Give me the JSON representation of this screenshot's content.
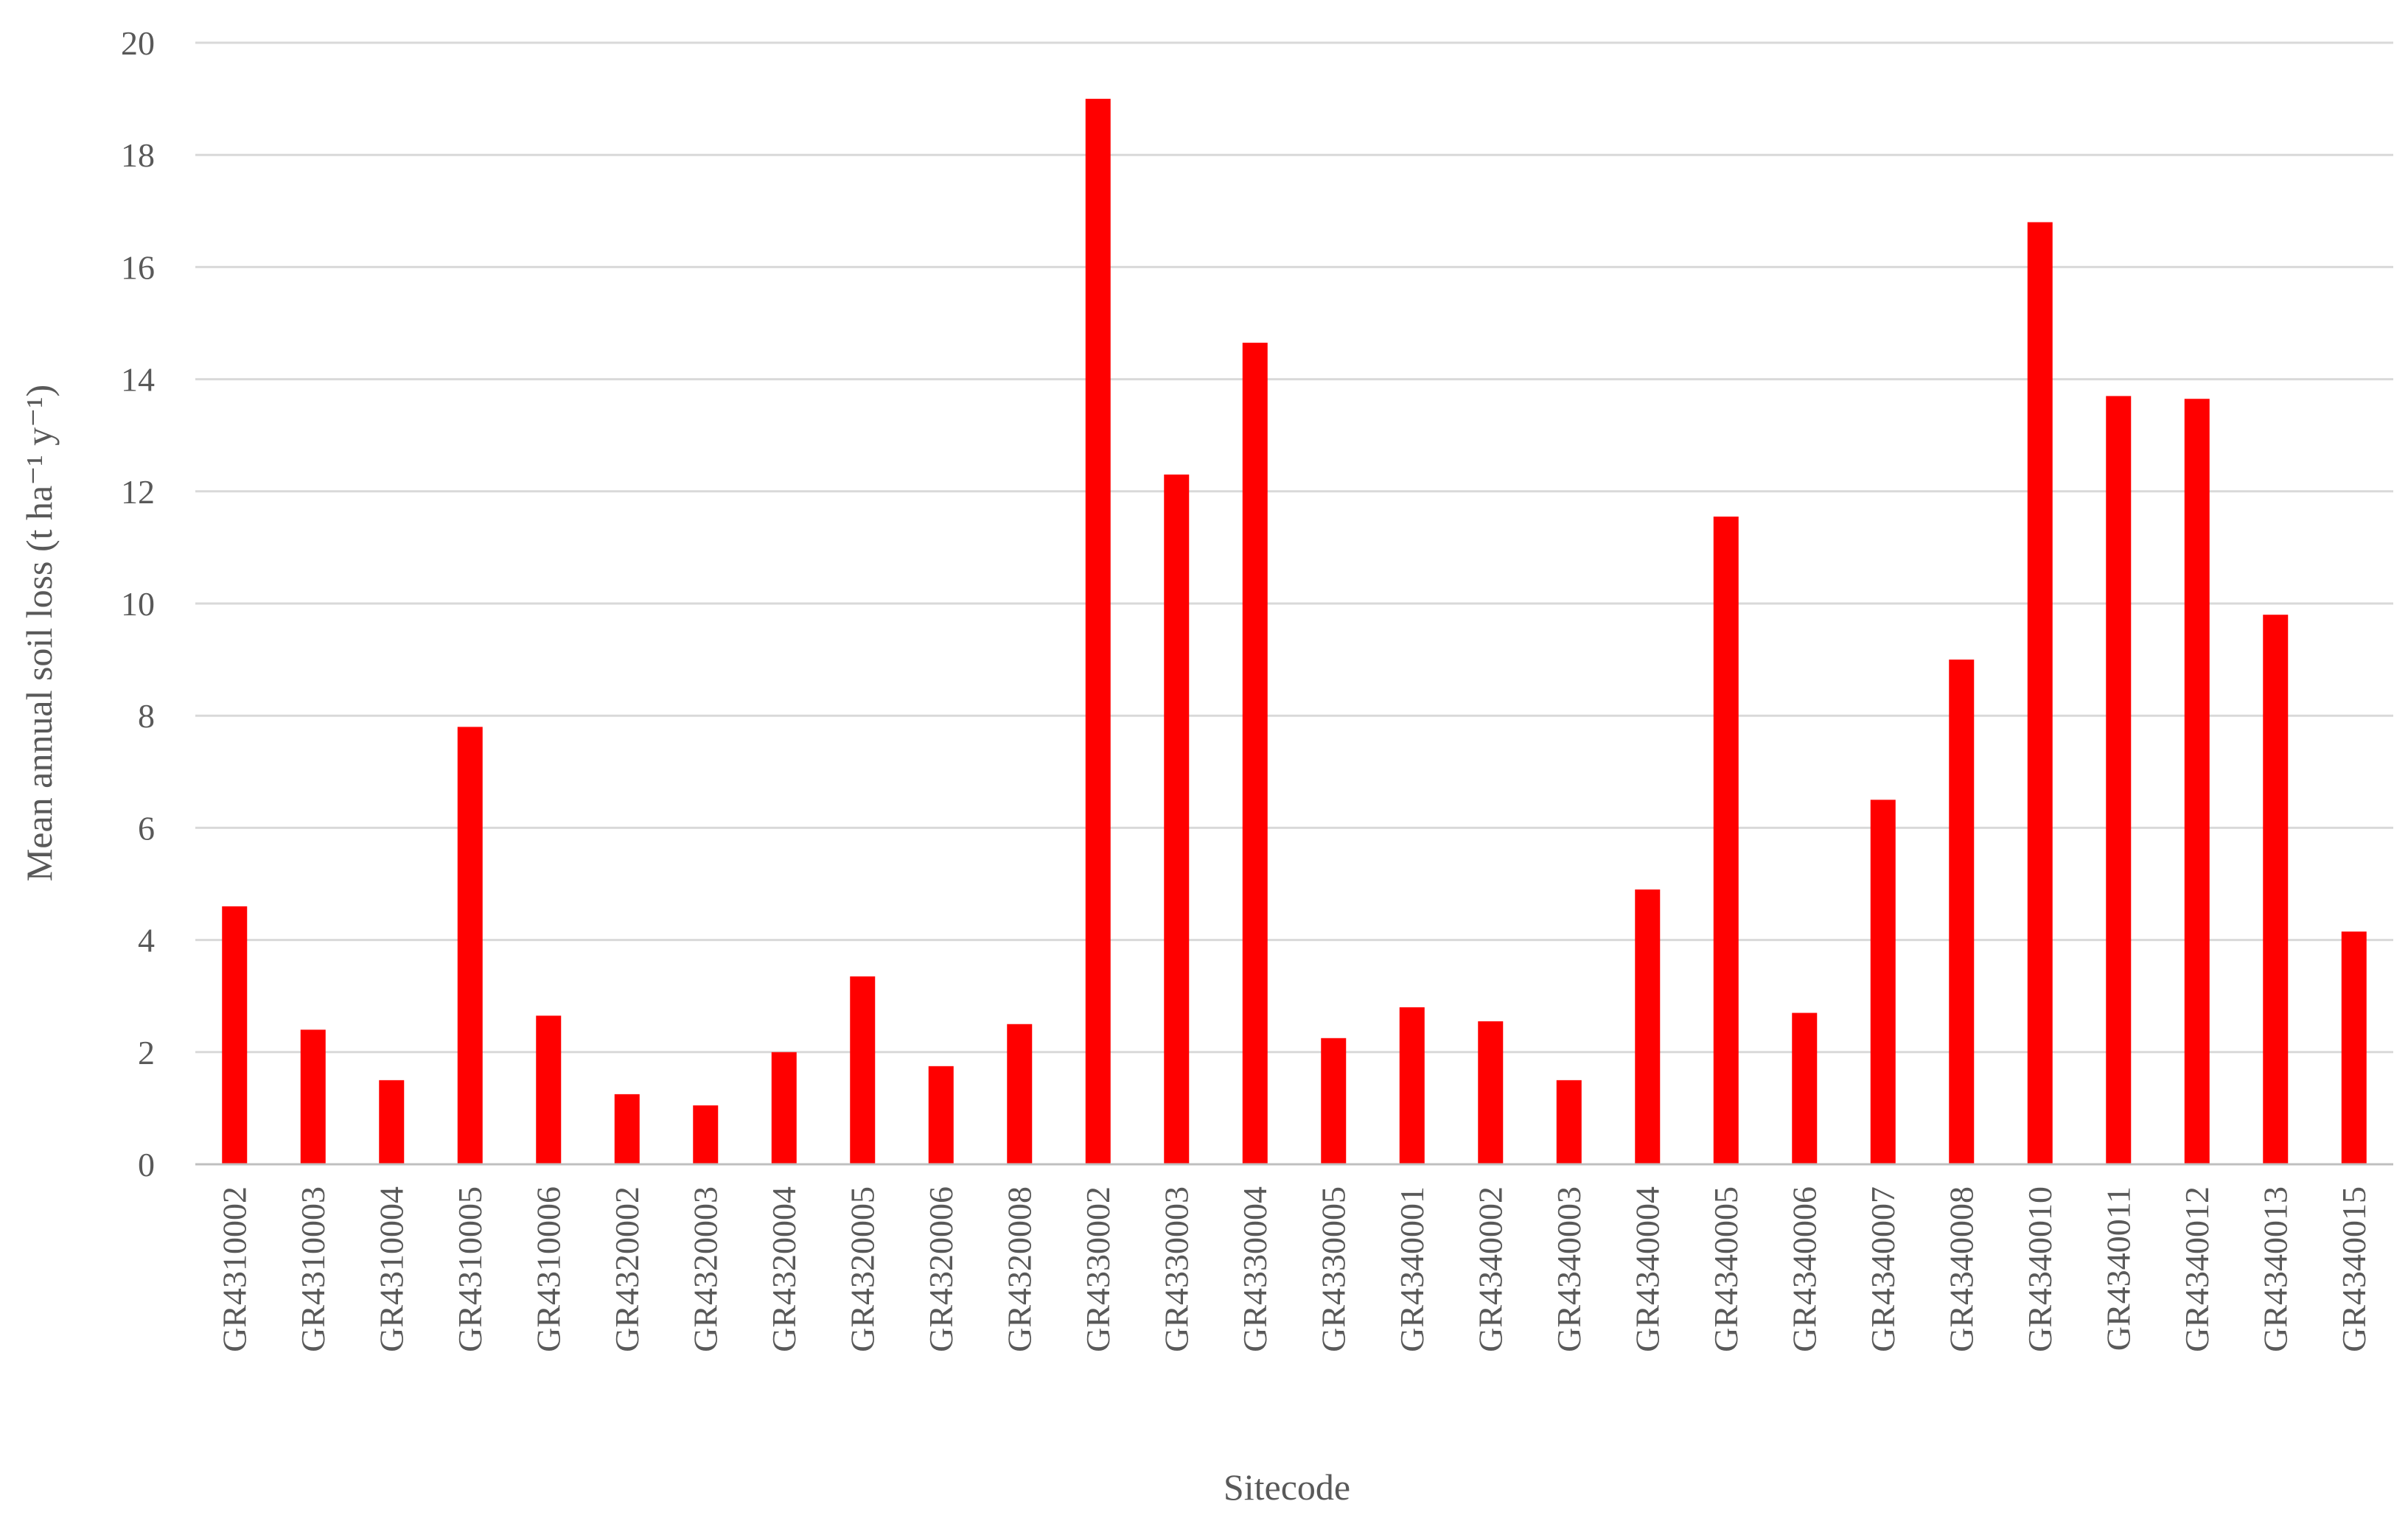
{
  "chart_data": {
    "type": "bar",
    "xlabel": "Sitecode",
    "ylabel": "Mean annual soil loss (t ha⁻¹ y⁻¹)",
    "ylim": [
      0,
      20
    ],
    "yticks": [
      0,
      2,
      4,
      6,
      8,
      10,
      12,
      14,
      16,
      18,
      20
    ],
    "grid": true,
    "legend": "none",
    "bar_color": "#ff0000",
    "categories": [
      "GR4310002",
      "GR4310003",
      "GR4310004",
      "GR4310005",
      "GR4310006",
      "GR4320002",
      "GR4320003",
      "GR4320004",
      "GR4320005",
      "GR4320006",
      "GR4320008",
      "GR4330002",
      "GR4330003",
      "GR4330004",
      "GR4330005",
      "GR4340001",
      "GR4340002",
      "GR4340003",
      "GR4340004",
      "GR4340005",
      "GR4340006",
      "GR4340007",
      "GR4340008",
      "GR4340010",
      "GR4340011",
      "GR4340012",
      "GR4340013",
      "GR4340015"
    ],
    "values": [
      4.6,
      2.4,
      1.5,
      7.8,
      2.65,
      1.25,
      1.05,
      2.0,
      3.35,
      1.75,
      2.5,
      19.0,
      12.3,
      14.65,
      2.25,
      2.8,
      2.55,
      1.5,
      4.9,
      11.55,
      2.7,
      6.5,
      9.0,
      16.8,
      13.7,
      13.65,
      9.8,
      4.15
    ]
  }
}
